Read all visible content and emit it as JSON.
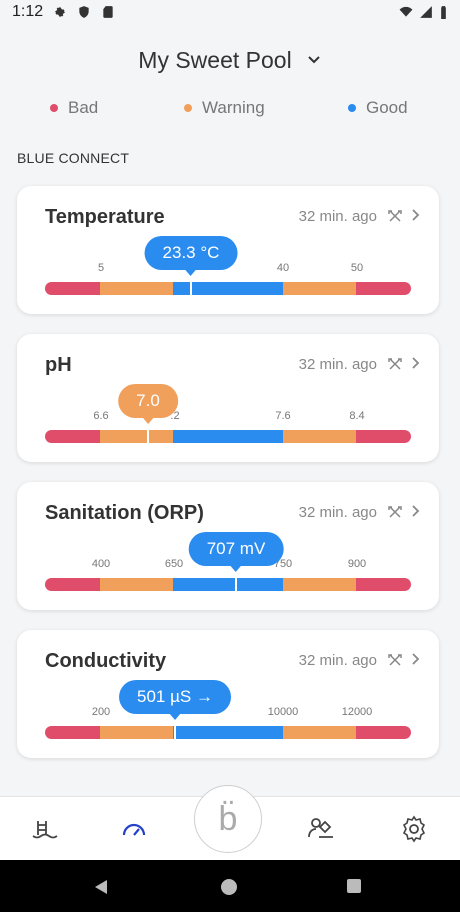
{
  "status_bar": {
    "time": "1:12"
  },
  "header": {
    "pool_name": "My Sweet Pool"
  },
  "legend": [
    {
      "label": "Bad",
      "color": "#e04d6b"
    },
    {
      "label": "Warning",
      "color": "#f0a05a"
    },
    {
      "label": "Good",
      "color": "#2b8cf0"
    }
  ],
  "section_label": "BLUE CONNECT",
  "cards": [
    {
      "title": "Temperature",
      "time": "32 min. ago",
      "value": "23.3 °C",
      "value_status": "good",
      "ticks": [
        "5",
        "40",
        "50"
      ]
    },
    {
      "title": "pH",
      "time": "32 min. ago",
      "value": "7.0",
      "value_status": "warning",
      "ticks": [
        "6.6",
        ".2",
        "7.6",
        "8.4"
      ]
    },
    {
      "title": "Sanitation (ORP)",
      "time": "32 min. ago",
      "value": "707 mV",
      "value_status": "good",
      "ticks": [
        "400",
        "650",
        "750",
        "900"
      ]
    },
    {
      "title": "Conductivity",
      "time": "32 min. ago",
      "value": "501 µS →",
      "value_status": "good",
      "ticks": [
        "200",
        "10000",
        "12000"
      ]
    }
  ],
  "bottom_nav": {
    "center_label": "b̈"
  },
  "colors": {
    "bad": "#e04d6b",
    "warning": "#f0a05a",
    "good": "#2b8cf0",
    "accent": "#2540c9"
  }
}
